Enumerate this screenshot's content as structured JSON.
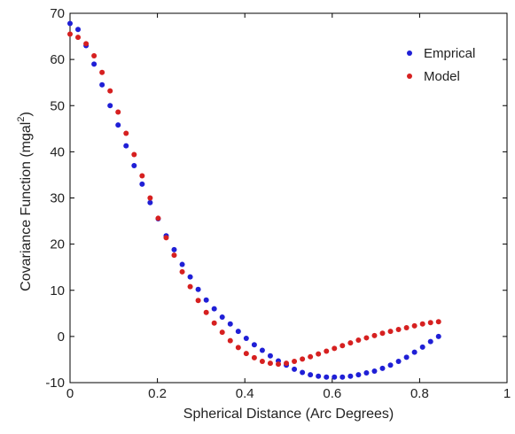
{
  "chart_data": {
    "type": "scatter",
    "xlabel": "Spherical Distance (Arc Degrees)",
    "ylabel": "Covariance Function (mgal",
    "ylabel_sup": "2",
    "ylabel_close": ")",
    "xlim": [
      0,
      1
    ],
    "ylim": [
      -10,
      70
    ],
    "xticks": [
      "0",
      "0.2",
      "0.4",
      "0.6",
      "0.8",
      "1"
    ],
    "yticks": [
      "-10",
      "0",
      "10",
      "20",
      "30",
      "40",
      "50",
      "60",
      "70"
    ],
    "grid": false,
    "legend_position": "top-right",
    "series": [
      {
        "name": "Emprical",
        "color": "#1f1fd6",
        "x": [
          0.0,
          0.0183,
          0.0367,
          0.055,
          0.0733,
          0.0917,
          0.11,
          0.1283,
          0.1467,
          0.165,
          0.1833,
          0.2017,
          0.22,
          0.2383,
          0.2567,
          0.275,
          0.2933,
          0.3117,
          0.33,
          0.3483,
          0.3667,
          0.385,
          0.4033,
          0.4217,
          0.44,
          0.4583,
          0.4767,
          0.495,
          0.5133,
          0.5317,
          0.55,
          0.5683,
          0.5867,
          0.605,
          0.6233,
          0.6417,
          0.66,
          0.6783,
          0.6967,
          0.715,
          0.7333,
          0.7517,
          0.77,
          0.7883,
          0.8067,
          0.825,
          0.8433
        ],
        "y": [
          67.8,
          66.5,
          63.0,
          59.0,
          54.5,
          50.0,
          45.8,
          41.3,
          37.0,
          33.0,
          29.0,
          25.5,
          21.8,
          18.8,
          15.6,
          12.9,
          10.2,
          7.9,
          6.0,
          4.2,
          2.7,
          1.1,
          -0.4,
          -1.8,
          -3.0,
          -4.2,
          -5.3,
          -6.2,
          -7.1,
          -7.8,
          -8.3,
          -8.6,
          -8.8,
          -8.8,
          -8.8,
          -8.6,
          -8.3,
          -7.9,
          -7.5,
          -6.9,
          -6.2,
          -5.4,
          -4.5,
          -3.4,
          -2.3,
          -1.1,
          0.0
        ]
      },
      {
        "name": "Model",
        "color": "#d62020",
        "x": [
          0.0,
          0.0183,
          0.0367,
          0.055,
          0.0733,
          0.0917,
          0.11,
          0.1283,
          0.1467,
          0.165,
          0.1833,
          0.2017,
          0.22,
          0.2383,
          0.2567,
          0.275,
          0.2933,
          0.3117,
          0.33,
          0.3483,
          0.3667,
          0.385,
          0.4033,
          0.4217,
          0.44,
          0.4583,
          0.4767,
          0.495,
          0.5133,
          0.5317,
          0.55,
          0.5683,
          0.5867,
          0.605,
          0.6233,
          0.6417,
          0.66,
          0.6783,
          0.6967,
          0.715,
          0.7333,
          0.7517,
          0.77,
          0.7883,
          0.8067,
          0.825,
          0.8433
        ],
        "y": [
          65.5,
          64.8,
          63.4,
          60.8,
          57.2,
          53.2,
          48.6,
          44.0,
          39.4,
          34.8,
          30.0,
          25.6,
          21.4,
          17.6,
          14.0,
          10.8,
          7.8,
          5.2,
          2.9,
          0.9,
          -0.9,
          -2.4,
          -3.7,
          -4.6,
          -5.4,
          -5.8,
          -6.0,
          -5.8,
          -5.4,
          -4.9,
          -4.4,
          -3.8,
          -3.2,
          -2.6,
          -2.0,
          -1.4,
          -0.8,
          -0.3,
          0.2,
          0.7,
          1.1,
          1.5,
          1.9,
          2.3,
          2.7,
          3.0,
          3.2
        ]
      }
    ]
  }
}
